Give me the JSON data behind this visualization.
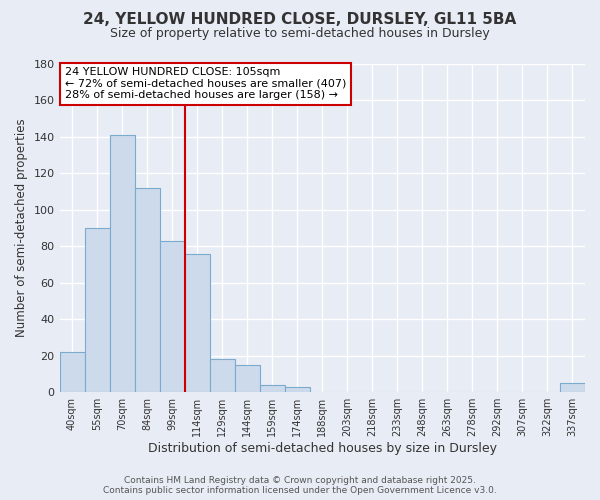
{
  "title": "24, YELLOW HUNDRED CLOSE, DURSLEY, GL11 5BA",
  "subtitle": "Size of property relative to semi-detached houses in Dursley",
  "xlabel": "Distribution of semi-detached houses by size in Dursley",
  "ylabel": "Number of semi-detached properties",
  "bar_labels": [
    "40sqm",
    "55sqm",
    "70sqm",
    "84sqm",
    "99sqm",
    "114sqm",
    "129sqm",
    "144sqm",
    "159sqm",
    "174sqm",
    "188sqm",
    "203sqm",
    "218sqm",
    "233sqm",
    "248sqm",
    "263sqm",
    "278sqm",
    "292sqm",
    "307sqm",
    "322sqm",
    "337sqm"
  ],
  "bar_values": [
    22,
    90,
    141,
    112,
    83,
    76,
    18,
    15,
    4,
    3,
    0,
    0,
    0,
    0,
    0,
    0,
    0,
    0,
    0,
    0,
    5
  ],
  "bar_color": "#cddaeb",
  "bar_edge_color": "#7aabcf",
  "ylim": [
    0,
    180
  ],
  "yticks": [
    0,
    20,
    40,
    60,
    80,
    100,
    120,
    140,
    160,
    180
  ],
  "vline_pos": 4.5,
  "vline_color": "#cc0000",
  "annotation_title": "24 YELLOW HUNDRED CLOSE: 105sqm",
  "annotation_line1": "← 72% of semi-detached houses are smaller (407)",
  "annotation_line2": "28% of semi-detached houses are larger (158) →",
  "annotation_box_color": "#cc0000",
  "footer_line1": "Contains HM Land Registry data © Crown copyright and database right 2025.",
  "footer_line2": "Contains public sector information licensed under the Open Government Licence v3.0.",
  "background_color": "#e8ecf5",
  "plot_bg_color": "#e8ecf5",
  "grid_color": "#ffffff",
  "title_fontsize": 11,
  "subtitle_fontsize": 9,
  "annotation_fontsize": 8,
  "footer_fontsize": 6.5
}
